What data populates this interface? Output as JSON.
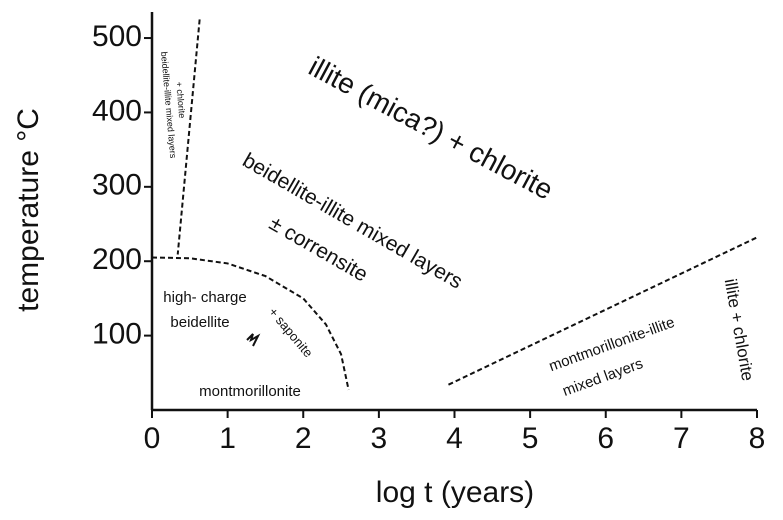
{
  "chart_data": {
    "type": "line",
    "xlabel": "log t (years)",
    "ylabel": "temperature °C",
    "xlim": [
      0,
      8
    ],
    "ylim": [
      0,
      535
    ],
    "xticks": [
      0,
      1,
      2,
      3,
      4,
      5,
      6,
      7,
      8
    ],
    "yticks": [
      100,
      200,
      300,
      400,
      500
    ],
    "series": [
      {
        "color": "#111",
        "x": [
          0.63,
          0.34
        ],
        "values": [
          525,
          209
        ]
      },
      {
        "color": "#111",
        "x": [
          0,
          0.5,
          1,
          1.5,
          2,
          2.3,
          2.5,
          2.6
        ],
        "values": [
          205,
          204,
          197,
          180,
          150,
          115,
          75,
          27
        ]
      },
      {
        "color": "#111",
        "x": [
          3.92,
          8
        ],
        "values": [
          34,
          232
        ]
      }
    ],
    "annotations": [
      "illite (mica?) + chlorite",
      "beidellite-illite mixed layers",
      "± corrensite",
      "high- charge",
      "beidellite",
      "+ saponite",
      "montmorillonite",
      "montmorillonite-illite",
      "mixed layers",
      "illite + chlorite",
      "beidellite-illite mixed layers",
      "+ chlorite"
    ]
  }
}
